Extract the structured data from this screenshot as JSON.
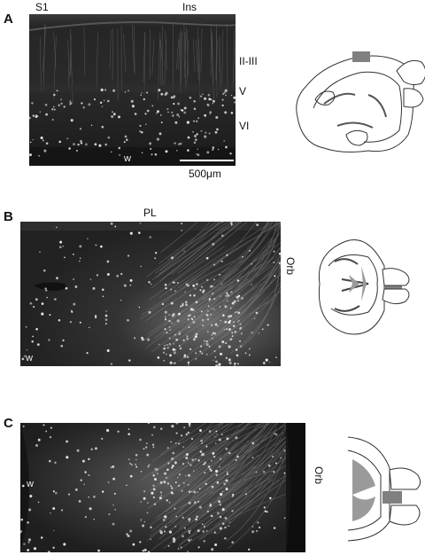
{
  "figure": {
    "panels": [
      {
        "id": "A",
        "top_labels": [
          "S1",
          "Ins"
        ],
        "layer_labels": [
          "II-III",
          "V",
          "VI"
        ],
        "white_matter_label": "w",
        "scale_bar_label": "500μm"
      },
      {
        "id": "B",
        "top_label": "PL",
        "side_label": "Orb",
        "white_matter_label": "w"
      },
      {
        "id": "C",
        "side_label": "Orb",
        "white_matter_label": "w"
      }
    ],
    "colors": {
      "micrograph_bg": "#1c1c1c",
      "cells": "#e8e8e8",
      "schematic_line": "#333333",
      "schematic_fill": "#9a9a9a",
      "highlight_box": "#808080"
    }
  }
}
